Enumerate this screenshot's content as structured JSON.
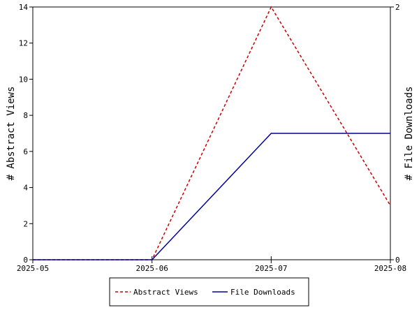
{
  "chart_data": {
    "type": "line",
    "x": [
      "2025-05",
      "2025-06",
      "2025-07",
      "2025-08"
    ],
    "y_left": {
      "label": "# Abstract Views",
      "ylim": [
        0,
        14
      ],
      "ticks": [
        "0",
        "2",
        "4",
        "6",
        "8",
        "10",
        "12",
        "14"
      ]
    },
    "y_right": {
      "label": "# File Downloads",
      "ylim": [
        0,
        2
      ],
      "ticks": [
        "0",
        "2"
      ]
    },
    "series": [
      {
        "name": "Abstract Views",
        "axis": "left",
        "values": [
          0,
          0,
          14,
          3
        ],
        "color": "#cc0000",
        "style": "dashed"
      },
      {
        "name": "File Downloads",
        "axis": "right",
        "values": [
          0,
          0,
          1,
          1
        ],
        "color": "#000099",
        "style": "solid"
      }
    ],
    "legend": "bottom",
    "grid": false
  }
}
